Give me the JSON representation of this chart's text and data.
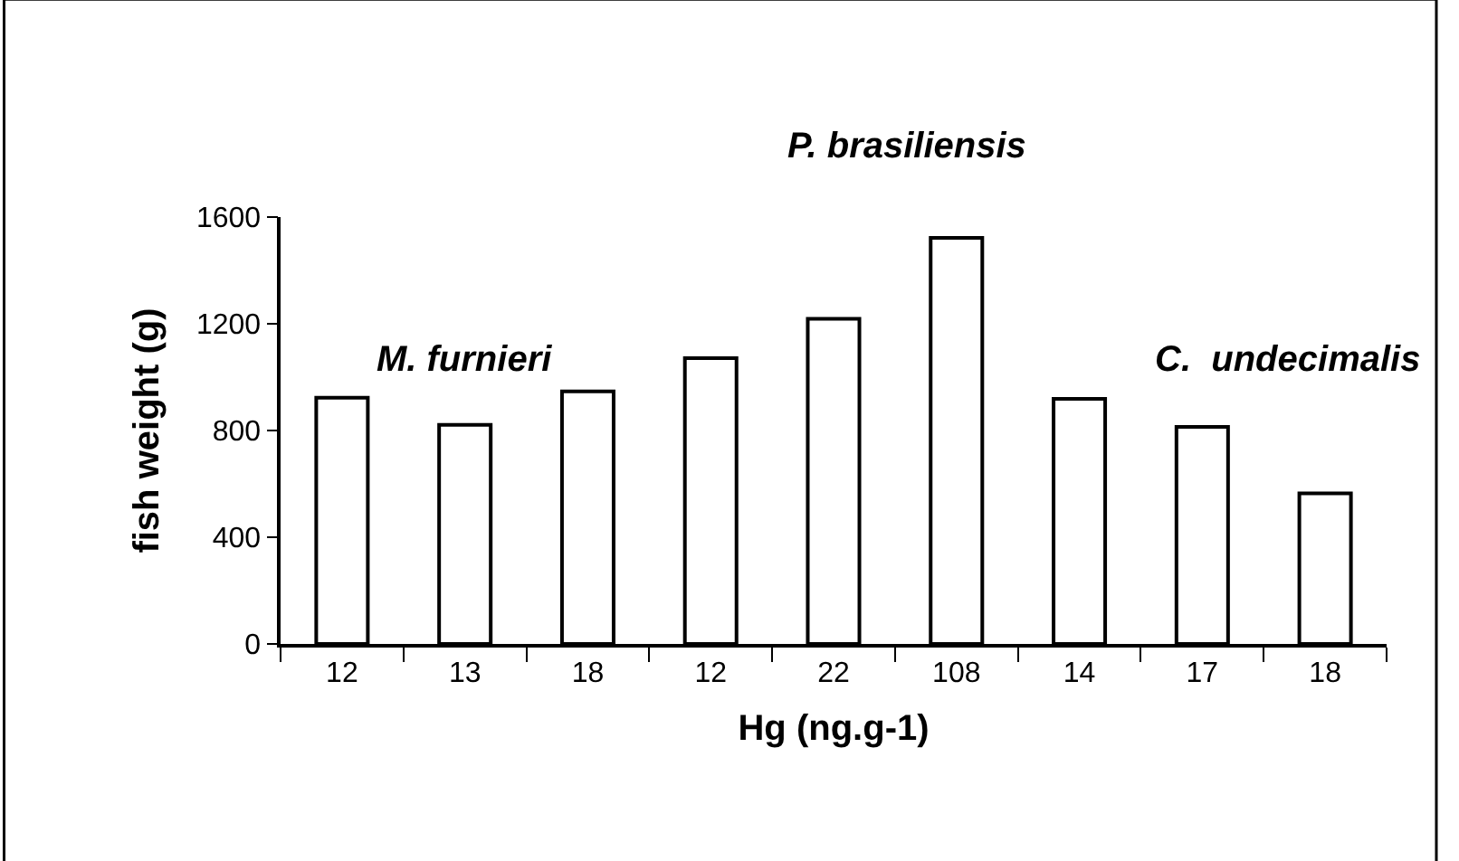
{
  "chart_data": {
    "type": "bar",
    "xlabel": "Hg (ng.g-1)",
    "ylabel": "fish weight (g)",
    "categories": [
      "12",
      "13",
      "18",
      "12",
      "22",
      "108",
      "14",
      "17",
      "18"
    ],
    "values": [
      923,
      821,
      947,
      1071,
      1219,
      1522,
      919,
      814,
      564
    ],
    "color": "#ffffff",
    "ylim": [
      0,
      1600
    ],
    "yticks": [
      0,
      400,
      800,
      1200,
      1600
    ],
    "annotations": [
      "M. furnieri",
      "P. brasiliensis",
      "C.  undecimalis"
    ]
  }
}
